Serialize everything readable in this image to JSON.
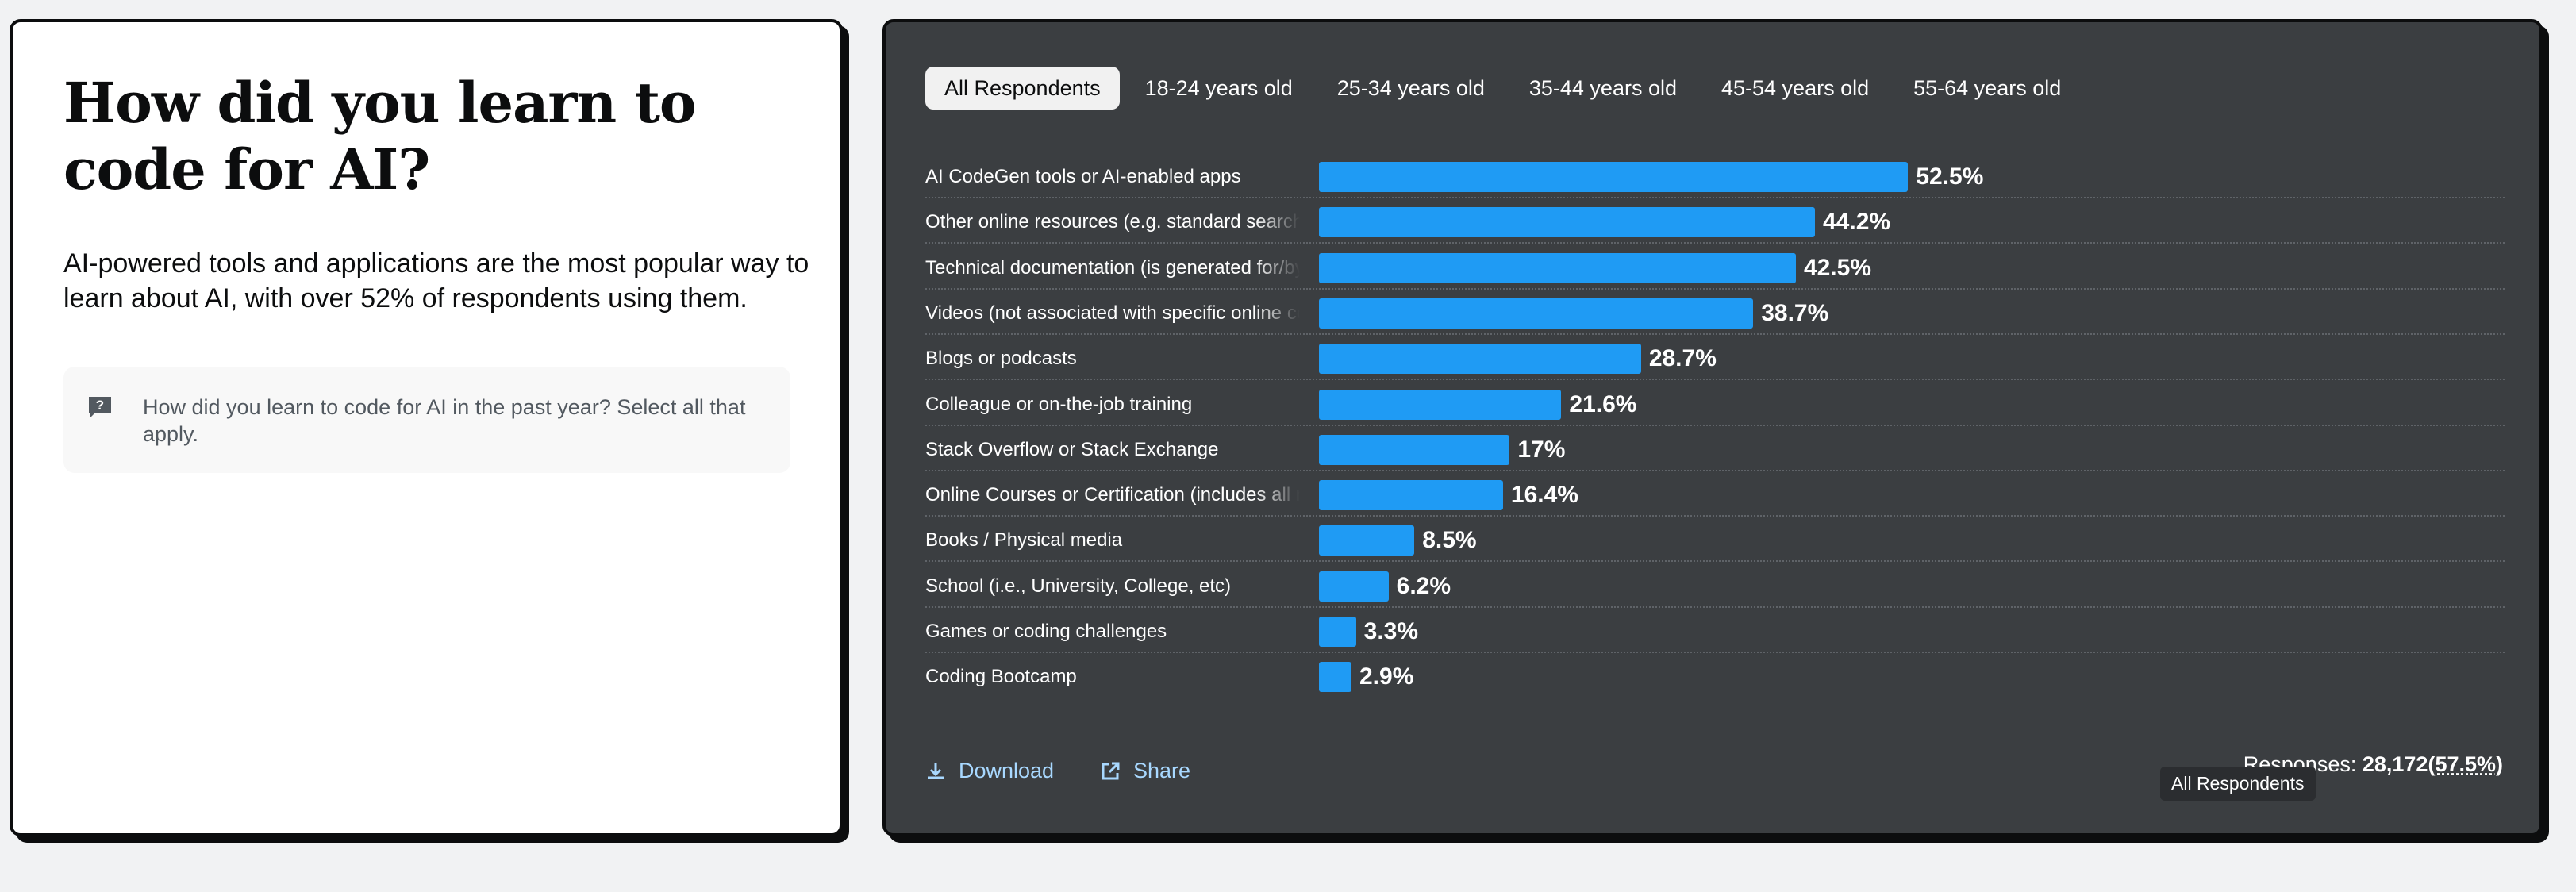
{
  "left_card": {
    "title": "How did you learn to code for AI?",
    "subtitle": "AI-powered tools and applications are the most popular way to learn about AI, with over 52% of respondents using them.",
    "question": "How did you learn to code for AI in the past year? Select all that apply.",
    "question_icon": "question-mark-speech-icon"
  },
  "tabs": [
    {
      "label": "All Respondents",
      "active": true
    },
    {
      "label": "18-24 years old",
      "active": false
    },
    {
      "label": "25-34 years old",
      "active": false
    },
    {
      "label": "35-44 years old",
      "active": false
    },
    {
      "label": "45-54 years old",
      "active": false
    },
    {
      "label": "55-64 years old",
      "active": false
    }
  ],
  "chart_data": {
    "type": "bar",
    "orientation": "horizontal",
    "categories": [
      "AI CodeGen tools or AI-enabled apps",
      "Other online resources (e.g. standard search, forum, online community)",
      "Technical documentation (is generated for/by the tool)",
      "Videos (not associated with specific online courses or certification)",
      "Blogs or podcasts",
      "Colleague or on-the-job training",
      "Stack Overflow or Stack Exchange",
      "Online Courses or Certification (includes all media types)",
      "Books / Physical media",
      "School (i.e., University, College, etc)",
      "Games or coding challenges",
      "Coding Bootcamp"
    ],
    "values": [
      52.5,
      44.2,
      42.5,
      38.7,
      28.7,
      21.6,
      17,
      16.4,
      8.5,
      6.2,
      3.3,
      2.9
    ],
    "value_labels": [
      "52.5%",
      "44.2%",
      "42.5%",
      "38.7%",
      "28.7%",
      "21.6%",
      "17%",
      "16.4%",
      "8.5%",
      "6.2%",
      "3.3%",
      "2.9%"
    ],
    "xlim": [
      0,
      100
    ],
    "bar_color": "#1f9bf4",
    "grid": false
  },
  "footer": {
    "download_label": "Download",
    "share_label": "Share",
    "responses_label": "Responses:",
    "responses_count": "28,172",
    "responses_pct": "(57.5%)",
    "tooltip": "All Respondents"
  },
  "colors": {
    "dark_panel": "#3b3e41",
    "accent_bar": "#1f9bf4",
    "link": "#a8d8ff"
  }
}
